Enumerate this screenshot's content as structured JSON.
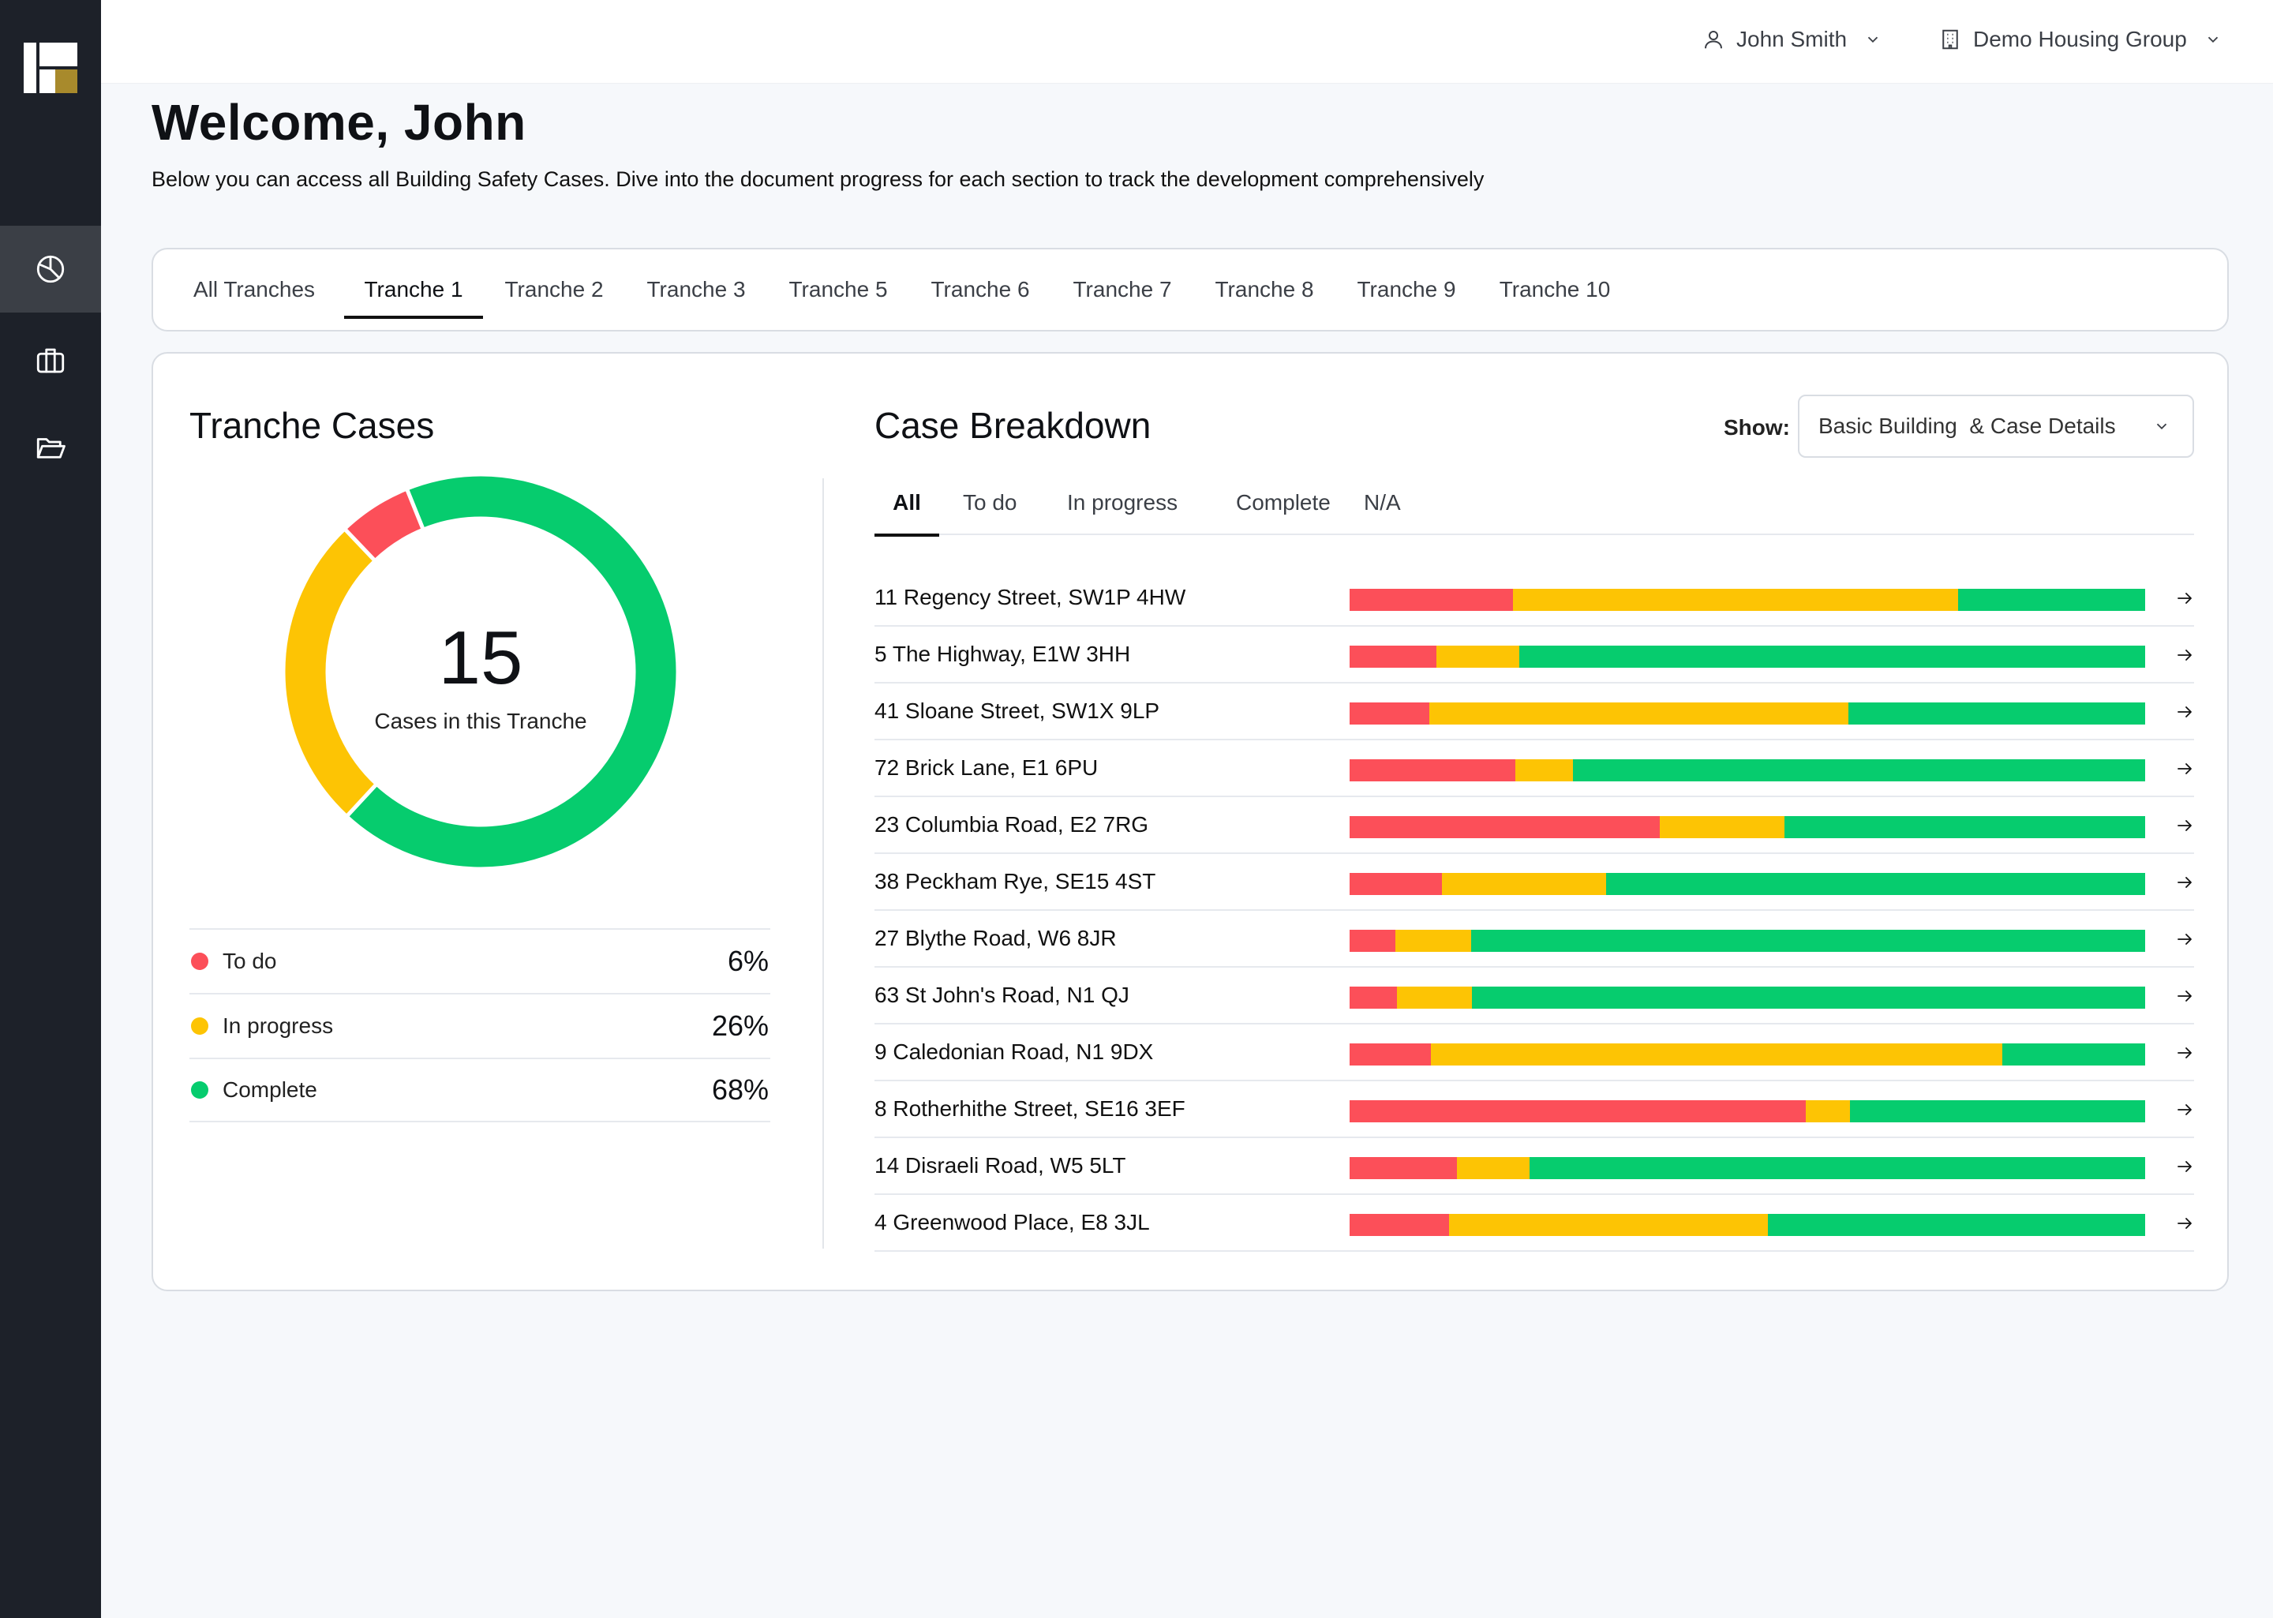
{
  "user": {
    "name": "John Smith",
    "icon": "user-icon"
  },
  "org": {
    "name": "Demo Housing Group",
    "icon": "building-icon"
  },
  "welcome": {
    "title": "Welcome, John",
    "subtitle": "Below you can access all Building Safety Cases. Dive into the document progress for each section to track the development comprehensively"
  },
  "nav": [
    {
      "icon": "pie-chart-icon",
      "active": true
    },
    {
      "icon": "briefcase-icon",
      "active": false
    },
    {
      "icon": "folder-icon",
      "active": false
    }
  ],
  "tranche_tabs": [
    "All Tranches",
    "Tranche 1",
    "Tranche 2",
    "Tranche 3",
    "Tranche 5",
    "Tranche 6",
    "Tranche 7",
    "Tranche 8",
    "Tranche 9",
    "Tranche 10"
  ],
  "tranche_active": "Tranche 1",
  "tranche_cases": {
    "title": "Tranche Cases",
    "total": "15",
    "total_label": "Cases in this Tranche",
    "legend": [
      {
        "label": "To do",
        "value": "6%",
        "color": "#fc4f59"
      },
      {
        "label": "In progress",
        "value": "26%",
        "color": "#fdc404"
      },
      {
        "label": "Complete",
        "value": "68%",
        "color": "#06cc6e"
      }
    ]
  },
  "chart_data": {
    "type": "pie",
    "categories": [
      "To do",
      "In progress",
      "Complete"
    ],
    "values": [
      6,
      26,
      68
    ],
    "colors": [
      "#fc4f59",
      "#fdc404",
      "#06cc6e"
    ]
  },
  "breakdown": {
    "title": "Case Breakdown",
    "show_label": "Show:",
    "show_value": "Basic Building  & Case Details",
    "status_tabs": [
      "All",
      "To do",
      "In progress",
      "Complete",
      "N/A"
    ],
    "status_active": "All",
    "cases": [
      {
        "address": "11 Regency Street, SW1P 4HW",
        "todo": 20.5,
        "progress": 56,
        "complete": 23.5
      },
      {
        "address": "5 The Highway, E1W 3HH",
        "todo": 10.9,
        "progress": 10.4,
        "complete": 78.7
      },
      {
        "address": "41 Sloane Street, SW1X 9LP",
        "todo": 10,
        "progress": 52.7,
        "complete": 37.3
      },
      {
        "address": "72 Brick Lane, E1 6PU",
        "todo": 20.8,
        "progress": 7.3,
        "complete": 71.9
      },
      {
        "address": "23 Columbia Road, E2 7RG",
        "todo": 39,
        "progress": 15.7,
        "complete": 45.3
      },
      {
        "address": "38 Peckham Rye, SE15 4ST",
        "todo": 11.6,
        "progress": 20.6,
        "complete": 67.8
      },
      {
        "address": "27 Blythe Road, W6 8JR",
        "todo": 5.8,
        "progress": 9.5,
        "complete": 84.7
      },
      {
        "address": "63 St John's Road, N1 QJ",
        "todo": 6,
        "progress": 9.4,
        "complete": 84.6
      },
      {
        "address": "9 Caledonian Road, N1 9DX",
        "todo": 10.2,
        "progress": 71.8,
        "complete": 18
      },
      {
        "address": "8 Rotherhithe Street, SE16 3EF",
        "todo": 57.3,
        "progress": 5.6,
        "complete": 37.1
      },
      {
        "address": "14 Disraeli Road, W5 5LT",
        "todo": 13.5,
        "progress": 9.1,
        "complete": 77.4
      },
      {
        "address": "4 Greenwood Place, E8 3JL",
        "todo": 12.5,
        "progress": 40.1,
        "complete": 47.4
      }
    ]
  }
}
